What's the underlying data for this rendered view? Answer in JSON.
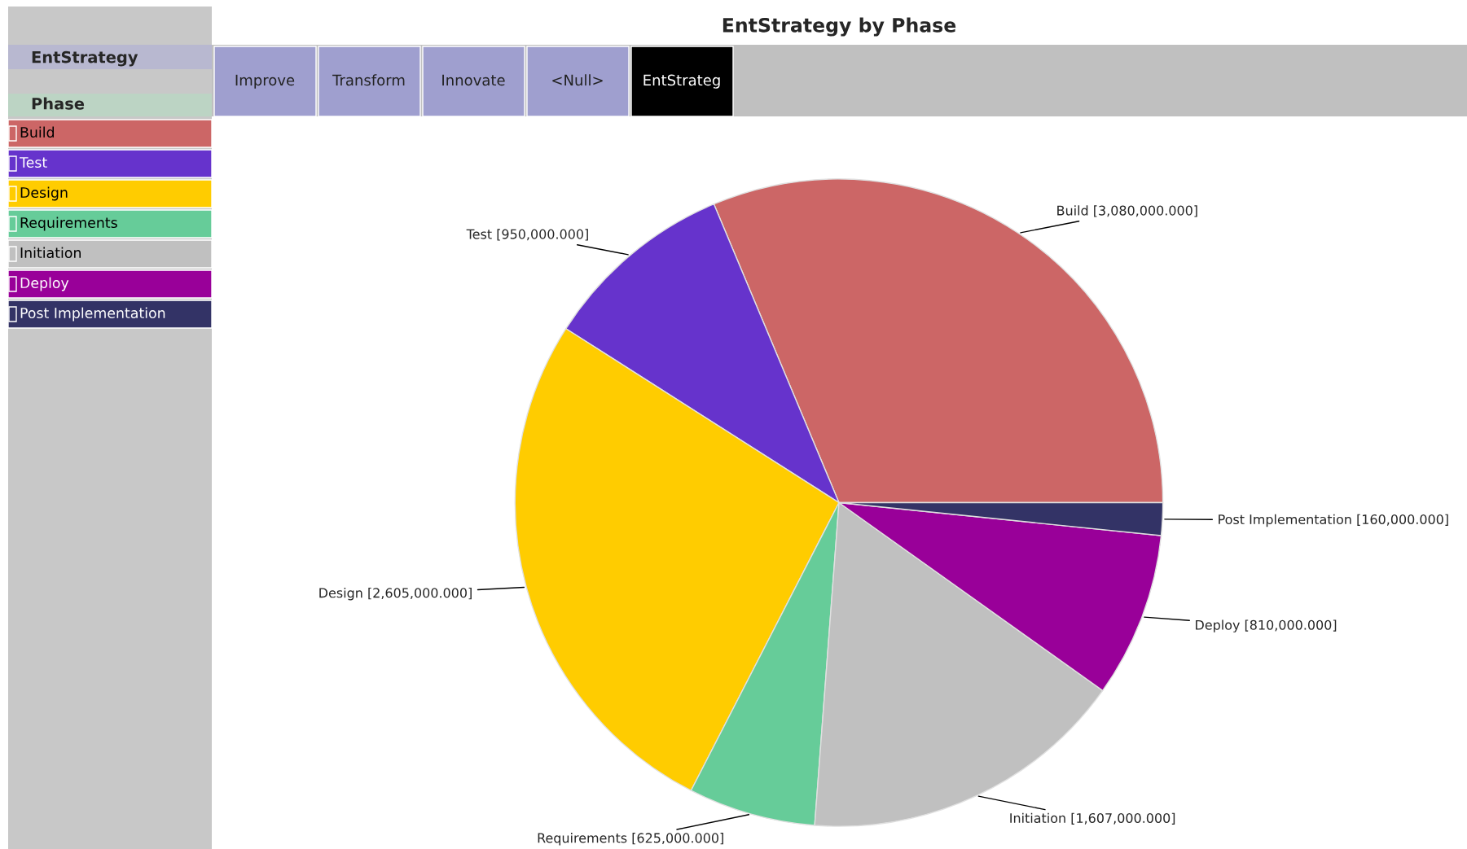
{
  "chart_data": {
    "type": "pie",
    "title": "EntStrategy by Phase",
    "categories": [
      "Build",
      "Test",
      "Design",
      "Requirements",
      "Initiation",
      "Deploy",
      "Post Implementation"
    ],
    "values": [
      3080000,
      950000,
      2605000,
      625000,
      1607000,
      810000,
      160000
    ],
    "value_labels": [
      "[3,080,000.000]",
      "[950,000.000]",
      "[2,605,000.000]",
      "[625,000.000]",
      "[1,607,000.000]",
      "[810,000.000]",
      "[160,000.000]"
    ],
    "colors": [
      "#cc6666",
      "#6633cc",
      "#ffcc00",
      "#66cc99",
      "#c0c0c0",
      "#990099",
      "#333366"
    ],
    "legend": "left",
    "legend_title": "Phase",
    "annotations": [
      "EntStrategy",
      "Improve",
      "Transform",
      "Innovate",
      "<Null>",
      "EntStrateg"
    ]
  }
}
